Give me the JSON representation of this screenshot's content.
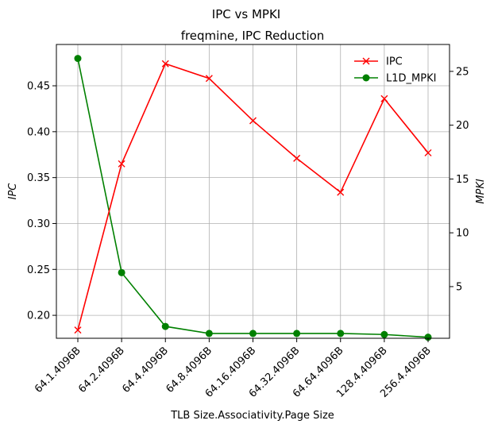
{
  "chart_data": {
    "type": "line",
    "suptitle": "IPC vs MPKI",
    "title": "freqmine, IPC Reduction",
    "xlabel": "TLB Size.Associativity.Page Size",
    "ylabel_left": "IPC",
    "ylabel_right": "MPKI",
    "categories": [
      "64.1.4096B",
      "64.2.4096B",
      "64.4.4096B",
      "64.8.4096B",
      "64.16.4096B",
      "64.32.4096B",
      "64.64.4096B",
      "128.4.4096B",
      "256.4.4096B"
    ],
    "y_left": {
      "lim": [
        0.175,
        0.495
      ],
      "ticks": [
        0.2,
        0.25,
        0.3,
        0.35,
        0.4,
        0.45
      ],
      "tick_labels": [
        "0.20",
        "0.25",
        "0.30",
        "0.35",
        "0.40",
        "0.45"
      ]
    },
    "y_right": {
      "lim": [
        0.2,
        27.5
      ],
      "ticks": [
        5,
        10,
        15,
        20,
        25
      ],
      "tick_labels": [
        "5",
        "10",
        "15",
        "20",
        "25"
      ]
    },
    "grid": true,
    "legend_position": "upper right",
    "series": [
      {
        "name": "IPC",
        "axis": "left",
        "color": "#ff0000",
        "marker": "x",
        "values": [
          0.184,
          0.365,
          0.474,
          0.458,
          0.412,
          0.371,
          0.334,
          0.436,
          0.377
        ]
      },
      {
        "name": "L1D_MPKI",
        "axis": "right",
        "color": "#008000",
        "marker": "o",
        "values": [
          26.2,
          6.3,
          1.3,
          0.65,
          0.65,
          0.65,
          0.65,
          0.55,
          0.3
        ]
      }
    ]
  }
}
